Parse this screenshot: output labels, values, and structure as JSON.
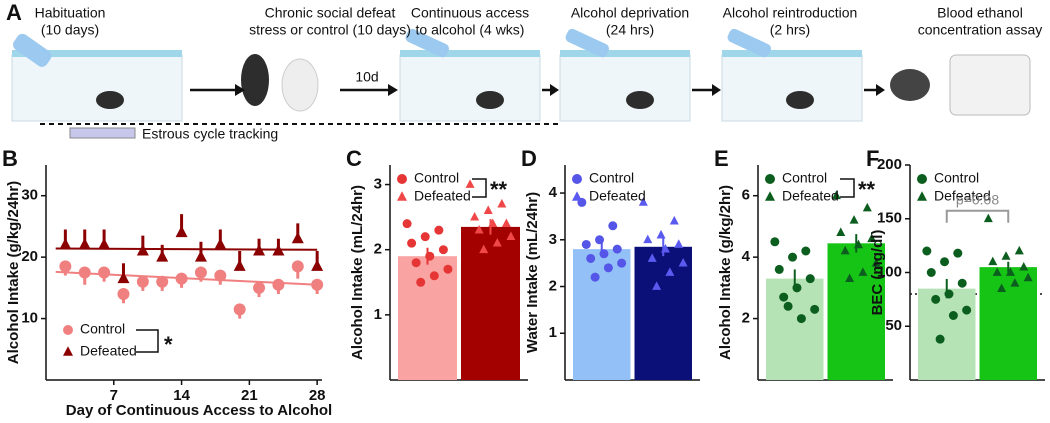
{
  "schematic": {
    "panel": "A",
    "steps": [
      {
        "label": [
          "Habituation",
          "(10 days)"
        ]
      },
      {
        "label": [
          "Chronic social defeat",
          "stress or control (10 days)"
        ]
      },
      {
        "label": [
          "Continuous access",
          "to alcohol (4 wks)"
        ]
      },
      {
        "label": [
          "Alcohol deprivation",
          "(24 hrs)"
        ]
      },
      {
        "label": [
          "Alcohol  reintroduction",
          "(2 hrs)"
        ]
      },
      {
        "label": [
          "Blood ethanol",
          "concentration assay"
        ]
      }
    ],
    "interval": "10d",
    "note": "Estrous cycle tracking"
  },
  "chart_data": [
    {
      "type": "line",
      "panel": "B",
      "xlabel": "Day of Continuous Access to Alcohol",
      "ylabel": "Alcohol Intake (g/kg/24hr)",
      "xlim": [
        0,
        28.5
      ],
      "xticks": [
        7,
        14,
        21,
        28
      ],
      "ylim": [
        0,
        35
      ],
      "yticks": [
        10,
        20,
        30
      ],
      "legend": "lower left",
      "annotation": "*",
      "x": [
        2,
        4,
        6,
        8,
        10,
        12,
        14,
        16,
        18,
        20,
        22,
        24,
        26,
        28
      ],
      "series": [
        {
          "name": "Control",
          "color": "#f08080",
          "marker": "circle",
          "error_direction": "down",
          "values": [
            18.5,
            17.5,
            17.5,
            14,
            16,
            16,
            16.5,
            17.5,
            17,
            11.5,
            15,
            15.5,
            18.5,
            15.5
          ],
          "errors": [
            1.5,
            2,
            1.5,
            1.5,
            1.5,
            1.5,
            1.5,
            1.5,
            1.5,
            1.5,
            1.5,
            1.5,
            2,
            1.5
          ],
          "trend": {
            "x": [
              1,
              28
            ],
            "values": [
              17.6,
              15.5
            ]
          }
        },
        {
          "name": "Defeated",
          "color": "#8b0000",
          "marker": "triangle",
          "error_direction": "up",
          "values": [
            22,
            22,
            22,
            16.5,
            21,
            20,
            24,
            20,
            22,
            18.5,
            21,
            21,
            23,
            18.5
          ],
          "errors": [
            2.5,
            2.5,
            2.5,
            2.5,
            2.5,
            2,
            3,
            2.5,
            2.5,
            2.5,
            2,
            2,
            2.5,
            2.5
          ],
          "trend": {
            "x": [
              1,
              28
            ],
            "values": [
              21.4,
              21.2
            ]
          }
        }
      ]
    },
    {
      "type": "bar",
      "panel": "C",
      "ylabel": "Alcohol Intake (mL/24hr)",
      "ylim": [
        0,
        3.3
      ],
      "yticks": [
        1,
        2,
        3
      ],
      "legend": "upper left",
      "annotation": "**",
      "series": [
        {
          "name": "Control",
          "color": "#f9a3a3",
          "point_color": "#e53535",
          "marker": "circle",
          "values": [
            1.9
          ],
          "errors": [
            0.13
          ],
          "points": [
            2.4,
            2.3,
            2.2,
            2.1,
            2.0,
            1.9,
            1.8,
            1.7,
            1.6,
            1.5
          ]
        },
        {
          "name": "Defeated",
          "color": "#a30000",
          "point_color": "#f04848",
          "marker": "triangle",
          "values": [
            2.35
          ],
          "errors": [
            0.12
          ],
          "points": [
            3.0,
            2.7,
            2.6,
            2.5,
            2.4,
            2.4,
            2.3,
            2.2,
            2.1,
            2.0
          ]
        }
      ]
    },
    {
      "type": "bar",
      "panel": "D",
      "ylabel": "Water Intake (mL/24hr)",
      "ylim": [
        0,
        4.6
      ],
      "yticks": [
        1,
        2,
        3,
        4
      ],
      "legend": "upper left",
      "series": [
        {
          "name": "Control",
          "color": "#93c1f7",
          "point_color": "#5555e8",
          "marker": "circle",
          "values": [
            2.8
          ],
          "errors": [
            0.15
          ],
          "points": [
            3.8,
            3.3,
            3.0,
            2.9,
            2.8,
            2.7,
            2.6,
            2.5,
            2.4,
            2.2
          ]
        },
        {
          "name": "Defeated",
          "color": "#0a1078",
          "point_color": "#5a5af0",
          "marker": "triangle",
          "values": [
            2.85
          ],
          "errors": [
            0.2
          ],
          "points": [
            3.8,
            3.4,
            3.1,
            3.0,
            2.9,
            2.8,
            2.6,
            2.5,
            2.3,
            2.0
          ]
        }
      ]
    },
    {
      "type": "bar",
      "panel": "E",
      "ylabel": "Alcohol Intake (g/kg/2hr)",
      "ylim": [
        0,
        7
      ],
      "yticks": [
        2,
        4,
        6
      ],
      "legend": "upper left",
      "annotation": "**",
      "series": [
        {
          "name": "Control",
          "color": "#b6e3b6",
          "point_color": "#0b5e1e",
          "marker": "circle",
          "values": [
            3.3
          ],
          "errors": [
            0.3
          ],
          "points": [
            4.5,
            4.2,
            4.0,
            3.6,
            3.3,
            3.0,
            2.7,
            2.3,
            2.0,
            2.4
          ]
        },
        {
          "name": "Defeated",
          "color": "#16c416",
          "point_color": "#0b5e1e",
          "marker": "triangle",
          "values": [
            4.45
          ],
          "errors": [
            0.3
          ],
          "points": [
            6.0,
            5.6,
            5.2,
            4.8,
            4.6,
            4.4,
            4.2,
            3.8,
            3.5,
            3.3
          ]
        }
      ]
    },
    {
      "type": "bar",
      "panel": "F",
      "ylabel": "BEC (mg/dl)",
      "ylim": [
        0,
        200
      ],
      "yticks": [
        50,
        100,
        150,
        200
      ],
      "legend": "upper left",
      "annotation": "p=0.08",
      "reference_line": 80,
      "series": [
        {
          "name": "Control",
          "color": "#b6e3b6",
          "point_color": "#0b5e1e",
          "marker": "circle",
          "values": [
            85
          ],
          "errors": [
            9
          ],
          "points": [
            120,
            118,
            110,
            100,
            90,
            80,
            75,
            65,
            60,
            38
          ]
        },
        {
          "name": "Defeated",
          "color": "#16c416",
          "point_color": "#0b5e1e",
          "marker": "triangle",
          "values": [
            105
          ],
          "errors": [
            5
          ],
          "points": [
            150,
            120,
            115,
            110,
            105,
            100,
            100,
            95,
            90,
            85
          ]
        }
      ]
    }
  ]
}
